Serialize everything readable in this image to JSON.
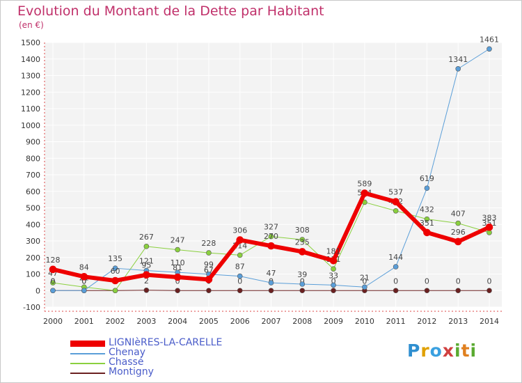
{
  "title": "Evolution du Montant de la Dette par Habitant",
  "subtitle": "(en €)",
  "logo_text": "Proxiti",
  "chart_data": {
    "type": "line",
    "title": "Evolution du Montant de la Dette par Habitant",
    "ylabel": "(en €)",
    "x": [
      "2000",
      "2001",
      "2002",
      "2003",
      "2004",
      "2005",
      "2006",
      "2007",
      "2008",
      "2009",
      "2010",
      "2011",
      "2012",
      "2013",
      "2014"
    ],
    "ylim": [
      -100,
      1500
    ],
    "yticks": [
      -100,
      0,
      100,
      200,
      300,
      400,
      500,
      600,
      700,
      800,
      900,
      1000,
      1100,
      1200,
      1300,
      1400,
      1500
    ],
    "series": [
      {
        "name": "Montigny",
        "color": "#6b2020",
        "width": 1,
        "values": [
          0,
          0,
          0,
          2,
          0,
          0,
          0,
          0,
          0,
          0,
          0,
          0,
          0,
          0,
          0
        ],
        "labels": [
          "0",
          "0",
          "0",
          "2",
          "0",
          "0",
          "0",
          "0",
          "0",
          "0",
          "0",
          "0",
          "0",
          "0",
          "0"
        ]
      },
      {
        "name": "Chassé",
        "color": "#8ad03e",
        "width": 1,
        "values": [
          47,
          21,
          0,
          267,
          247,
          228,
          214,
          327,
          308,
          131,
          534,
          482,
          432,
          407,
          351
        ],
        "labels": [
          "47",
          "21",
          "0",
          "267",
          "247",
          "228",
          "214",
          "327",
          "308",
          "131",
          "534",
          "482",
          "432",
          "407",
          "351"
        ]
      },
      {
        "name": "Chenay",
        "color": "#5a9ed8",
        "width": 1,
        "values": [
          0,
          0,
          135,
          121,
          110,
          99,
          87,
          47,
          39,
          33,
          21,
          144,
          619,
          1341,
          1461
        ],
        "labels": [
          "0",
          "0",
          "135",
          "121",
          "110",
          "99",
          "87",
          "47",
          "39",
          "33",
          "21",
          "144",
          "619",
          "1341",
          "1461"
        ]
      },
      {
        "name": "LIGNIèRES-LA-CARELLE",
        "color": "#ee0000",
        "width": 6,
        "values": [
          128,
          84,
          60,
          95,
          81,
          67,
          306,
          270,
          235,
          181,
          589,
          537,
          351,
          296,
          383
        ],
        "labels": [
          "128",
          "84",
          "60",
          "95",
          "81",
          "67",
          "306",
          "270",
          "235",
          "181",
          "589",
          "537",
          "351",
          "296",
          "383"
        ]
      }
    ],
    "legend_order": [
      "LIGNIèRES-LA-CARELLE",
      "Chenay",
      "Chassé",
      "Montigny"
    ],
    "legend_position": "bottom-left"
  }
}
